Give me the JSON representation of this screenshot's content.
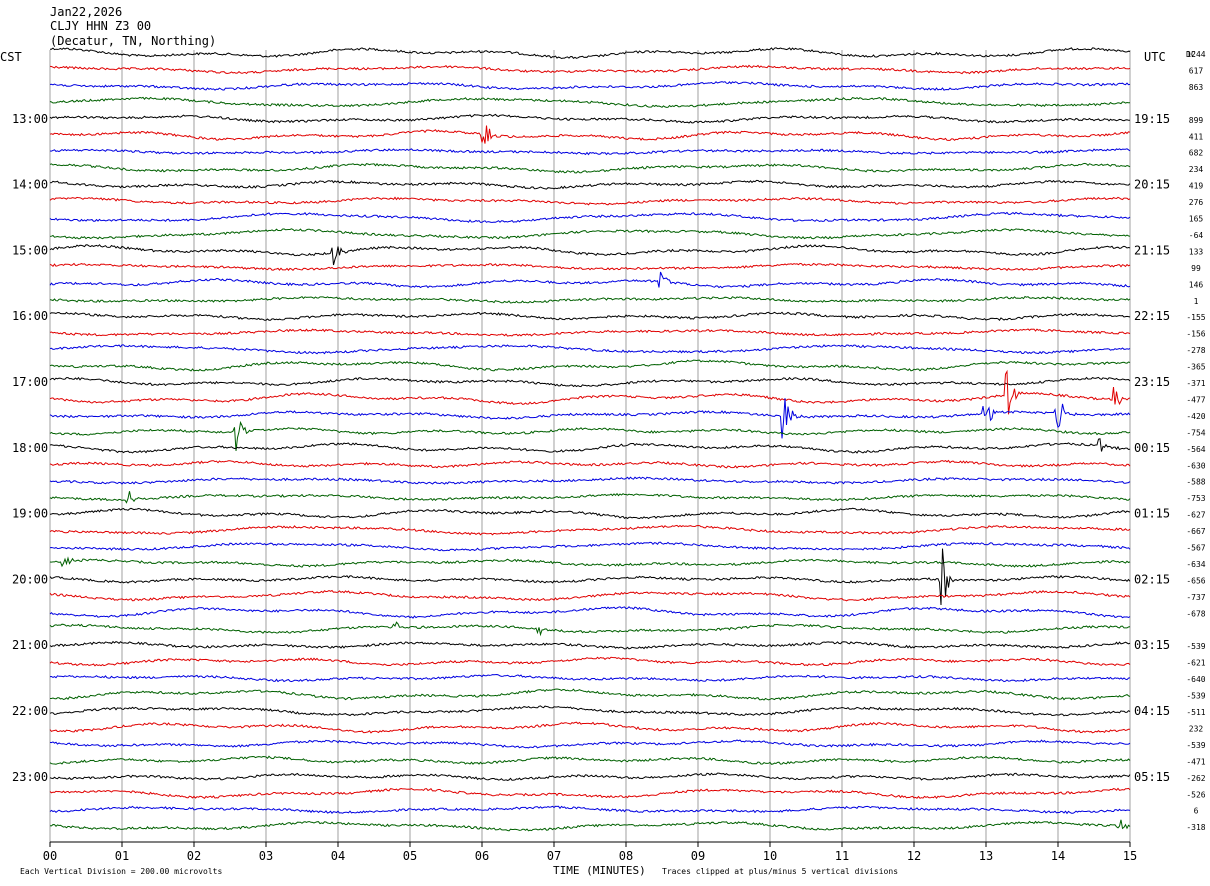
{
  "header": {
    "date": "Jan22,2026",
    "station": "CLJY HHN Z3 00",
    "location": "(Decatur, TN, Northing)"
  },
  "labels": {
    "left_tz": "CST",
    "right_tz": "UTC",
    "dc": "DC"
  },
  "chart_data": {
    "type": "line",
    "title": "",
    "xlabel": "TIME (MINUTES)",
    "ylabel": "",
    "xlim": [
      0,
      15
    ],
    "x_ticks": [
      "00",
      "01",
      "02",
      "03",
      "04",
      "05",
      "06",
      "07",
      "08",
      "09",
      "10",
      "11",
      "12",
      "13",
      "14",
      "15"
    ],
    "left_hour_labels": [
      "13:00",
      "14:00",
      "15:00",
      "16:00",
      "17:00",
      "18:00",
      "19:00",
      "20:00",
      "21:00",
      "22:00",
      "23:00"
    ],
    "right_hour_labels": [
      "19:15",
      "20:15",
      "21:15",
      "22:15",
      "23:15",
      "00:15",
      "01:15",
      "02:15",
      "03:15",
      "04:15",
      "05:15"
    ],
    "line_colors": [
      "#000000",
      "#e00000",
      "#0000e0",
      "#006000"
    ],
    "dc_offsets": [
      "1244",
      "617",
      "863",
      "",
      "899",
      "411",
      "682",
      "234",
      "419",
      "276",
      "165",
      "-64",
      "133",
      "99",
      "146",
      "1",
      "-155",
      "-156",
      "-278",
      "-365",
      "-371",
      "-477",
      "-420",
      "-754",
      "-564",
      "-630",
      "-588",
      "-753",
      "-627",
      "-667",
      "-567",
      "-634",
      "-656",
      "-737",
      "-678",
      "",
      "-539",
      "-621",
      "-640",
      "-539",
      "-511",
      "232",
      "-539",
      "-471",
      "-262",
      "-526",
      "6",
      "-318"
    ],
    "footnote_left": "Each Vertical Division =  200.00 microvolts",
    "footnote_right": "Traces clipped at plus/minus 5 vertical divisions",
    "events": [
      {
        "row": 5,
        "minute": 6.05,
        "amp": 12
      },
      {
        "row": 12,
        "minute": 3.95,
        "amp": 16
      },
      {
        "row": 14,
        "minute": 8.5,
        "amp": 14
      },
      {
        "row": 22,
        "minute": 10.2,
        "amp": 28
      },
      {
        "row": 21,
        "minute": 13.3,
        "amp": 26
      },
      {
        "row": 22,
        "minute": 13.0,
        "amp": 22
      },
      {
        "row": 22,
        "minute": 14.0,
        "amp": 22
      },
      {
        "row": 23,
        "minute": 2.6,
        "amp": 20
      },
      {
        "row": 32,
        "minute": 12.4,
        "amp": 30
      },
      {
        "row": 27,
        "minute": 1.1,
        "amp": 10
      },
      {
        "row": 31,
        "minute": 0.2,
        "amp": 6
      },
      {
        "row": 35,
        "minute": 4.8,
        "amp": 6
      },
      {
        "row": 35,
        "minute": 6.8,
        "amp": 6
      },
      {
        "row": 21,
        "minute": 14.8,
        "amp": 12
      },
      {
        "row": 24,
        "minute": 14.6,
        "amp": 8
      },
      {
        "row": 47,
        "minute": 14.85,
        "amp": 10
      }
    ]
  }
}
